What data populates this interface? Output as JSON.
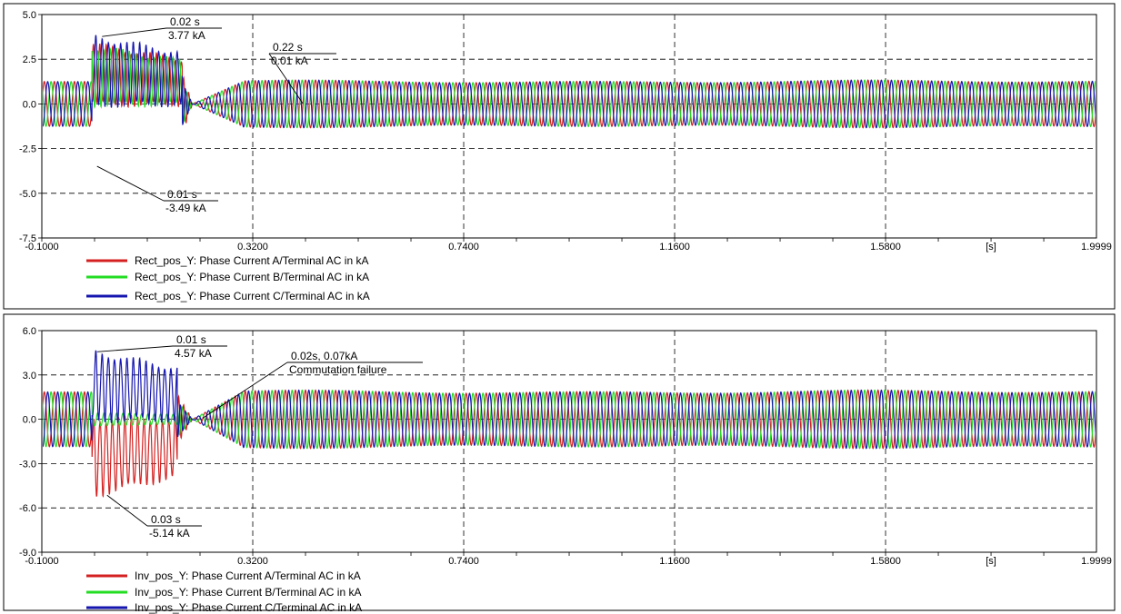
{
  "chart_data": [
    {
      "type": "line",
      "x_unit_label": "[s]",
      "xlim": [
        -0.1,
        1.9999
      ],
      "x_ticks": [
        "-0.1000",
        "0.3200",
        "0.7400",
        "1.1600",
        "1.5800",
        "1.9999"
      ],
      "ylim": [
        -7.5,
        5.0
      ],
      "y_ticks": [
        "5.0",
        "2.5",
        "0.0",
        "-2.5",
        "-5.0",
        "-7.5"
      ],
      "grid": true,
      "legend_position": "bottom",
      "series": [
        {
          "name": "Rect_pos_Y: Phase Current A/Terminal AC in kA",
          "color": "#d42020",
          "phase": 0,
          "steady_amplitude": 1.25,
          "fault_peak": 3.3
        },
        {
          "name": "Rect_pos_Y: Phase Current B/Terminal AC in kA",
          "color": "#22dd22",
          "phase": 2.094,
          "steady_amplitude": 1.25,
          "fault_peak": 3.2
        },
        {
          "name": "Rect_pos_Y: Phase Current C/Terminal AC in kA",
          "color": "#1515b0",
          "phase": 4.189,
          "steady_amplitude": 1.25,
          "fault_peak": 3.77
        }
      ],
      "waveform": {
        "frequency_hz": 50,
        "fault_start": 0.0,
        "fault_end": 0.18,
        "recovery_start": 0.2,
        "recovery_end": 0.3
      },
      "annotations": [
        {
          "line1": "0.02 s",
          "line2": "3.77 kA",
          "point": [
            0.02,
            3.77
          ]
        },
        {
          "line1": "0.22 s",
          "line2": "0.01 kA",
          "point": [
            0.22,
            0.01
          ]
        },
        {
          "line1": "0.01 s",
          "line2": "-3.49 kA",
          "point": [
            0.01,
            -3.49
          ]
        }
      ]
    },
    {
      "type": "line",
      "x_unit_label": "[s]",
      "xlim": [
        -0.1,
        1.9999
      ],
      "x_ticks": [
        "-0.1000",
        "0.3200",
        "0.7400",
        "1.1600",
        "1.5800",
        "1.9999"
      ],
      "ylim": [
        -9.0,
        6.0
      ],
      "y_ticks": [
        "6.0",
        "3.0",
        "0.0",
        "-3.0",
        "-6.0",
        "-9.0"
      ],
      "grid": true,
      "legend_position": "bottom",
      "series": [
        {
          "name": "Inv_pos_Y: Phase Current A/Terminal AC in kA",
          "color": "#d42020",
          "phase": 0,
          "steady_amplitude": 1.85,
          "fault_peak": -5.14
        },
        {
          "name": "Inv_pos_Y: Phase Current B/Terminal AC in kA",
          "color": "#22dd22",
          "phase": 2.094,
          "steady_amplitude": 1.85,
          "fault_peak": -0.9
        },
        {
          "name": "Inv_pos_Y: Phase Current C/Terminal AC in kA",
          "color": "#1515b0",
          "phase": 4.189,
          "steady_amplitude": 1.85,
          "fault_peak": 4.57
        }
      ],
      "waveform": {
        "frequency_hz": 50,
        "fault_start": 0.0,
        "fault_end": 0.17,
        "recovery_start": 0.2,
        "recovery_end": 0.3
      },
      "annotations": [
        {
          "line1": "0.01 s",
          "line2": "4.57 kA",
          "point": [
            0.01,
            4.57
          ]
        },
        {
          "line1": "0.02s, 0.07kA",
          "line2": "Commutation failure",
          "point": [
            0.02,
            0.07
          ]
        },
        {
          "line1": "0.03 s",
          "line2": "-5.14 kA",
          "point": [
            0.03,
            -5.14
          ]
        }
      ]
    }
  ]
}
